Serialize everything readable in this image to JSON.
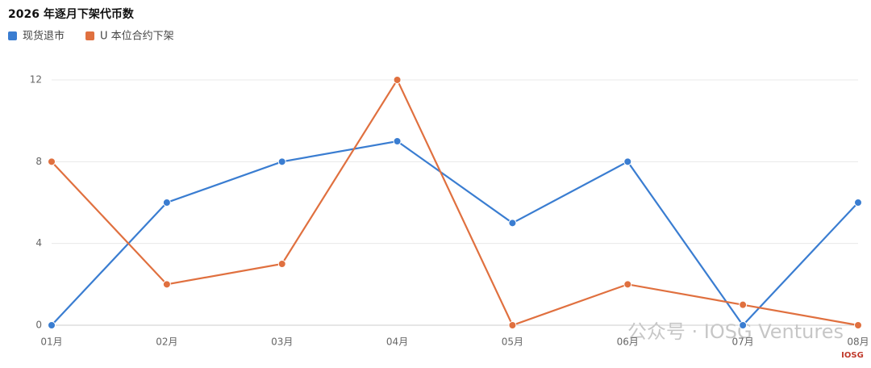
{
  "chart_data": {
    "type": "line",
    "title": "2026 年逐月下架代币数",
    "categories": [
      "01月",
      "02月",
      "03月",
      "04月",
      "05月",
      "06月",
      "07月",
      "08月"
    ],
    "series": [
      {
        "name": "现货退市",
        "color": "#3a7dd1",
        "values": [
          0,
          6,
          8,
          9,
          5,
          8,
          0,
          6
        ]
      },
      {
        "name": "U 本位合约下架",
        "color": "#e0703f",
        "values": [
          8,
          2,
          3,
          12,
          0,
          2,
          1,
          0
        ]
      }
    ],
    "ylim": [
      0,
      12
    ],
    "yticks": [
      0,
      4,
      8,
      12
    ],
    "grid": true,
    "legend": "top-left",
    "watermark": "公众号 · IOSG Ventures",
    "logo_text": "IOSG"
  }
}
